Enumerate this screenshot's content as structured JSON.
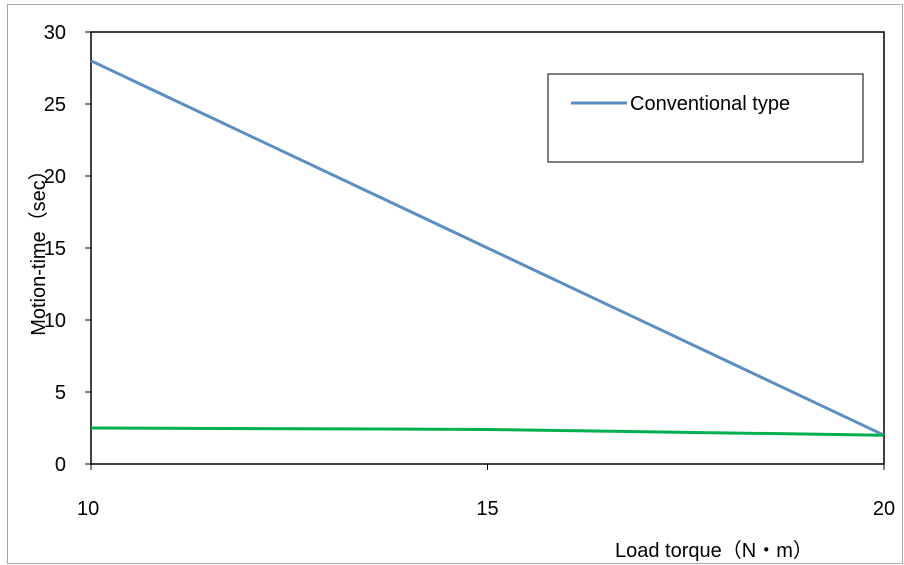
{
  "chart_data": {
    "type": "line",
    "title": "",
    "xlabel": "Load torque（N・m）",
    "ylabel": "Motion-time（sec）",
    "xlim": [
      10,
      20
    ],
    "ylim": [
      0,
      30
    ],
    "xticks": [
      10,
      15,
      20
    ],
    "yticks": [
      0,
      5,
      10,
      15,
      20,
      25,
      30
    ],
    "grid": false,
    "legend_position": "top-right",
    "series": [
      {
        "name": "Conventional type",
        "color": "#5b8fc4",
        "x": [
          10,
          15,
          20
        ],
        "values": [
          28,
          15,
          2
        ],
        "in_legend": true
      },
      {
        "name": "",
        "color": "#00b050",
        "x": [
          10,
          15,
          20
        ],
        "values": [
          2.5,
          2.4,
          2
        ],
        "in_legend": false
      }
    ]
  }
}
